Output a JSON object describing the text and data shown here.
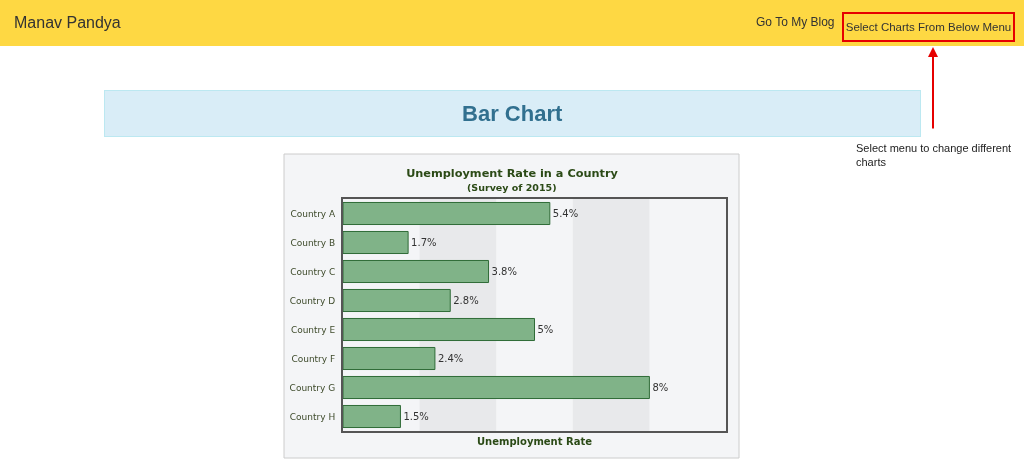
{
  "chart_data": {
    "type": "bar",
    "orientation": "horizontal",
    "title": "Unemployment Rate in a Country",
    "subtitle": "(Survey of 2015)",
    "xlabel": "Unemployment Rate",
    "categories": [
      "Country A",
      "Country B",
      "Country C",
      "Country D",
      "Country E",
      "Country F",
      "Country G",
      "Country H"
    ],
    "values": [
      5.4,
      1.7,
      3.8,
      2.8,
      5,
      2.4,
      8,
      1.5
    ],
    "value_labels": [
      "5.4%",
      "1.7%",
      "3.8%",
      "2.8%",
      "5%",
      "2.4%",
      "8%",
      "1.5%"
    ],
    "color": "#80b388",
    "xlim": [
      0,
      10
    ],
    "tick_labels": "y",
    "bands": [
      {
        "axis": "x",
        "from": 2,
        "to": 4,
        "color": "#e8e9eb"
      },
      {
        "axis": "x",
        "from": 6,
        "to": 8,
        "color": "#e8e9eb"
      }
    ],
    "annotations": [
      "Manav Pandya",
      "Go To My Blog",
      "Select Charts From Below Menu",
      "Bar Chart",
      "Select menu to change different charts"
    ]
  }
}
